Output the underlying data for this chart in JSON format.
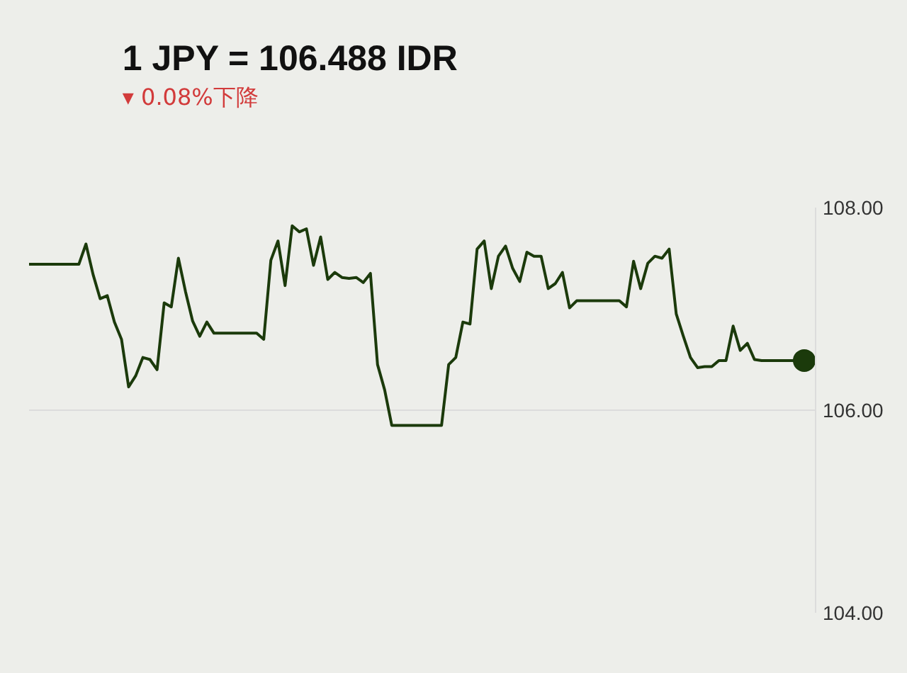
{
  "chart_data": {
    "type": "line",
    "title": "1 JPY = 106.488 IDR",
    "subtitle": "▾ 0.08%下降",
    "categories": [
      null,
      null,
      null,
      null,
      null,
      null,
      null,
      null,
      null,
      null,
      null,
      null,
      null,
      null,
      null,
      null,
      null,
      null,
      null,
      null,
      null,
      null,
      null,
      null,
      null,
      null,
      null,
      null,
      null,
      null,
      null,
      null,
      null,
      null,
      null,
      null,
      null,
      null,
      null,
      null,
      null,
      null,
      null,
      null,
      null,
      null,
      null,
      null,
      null,
      null,
      null,
      null,
      null,
      null,
      null,
      null,
      null,
      null,
      null,
      null,
      null,
      null,
      null,
      null,
      null,
      null,
      null,
      null,
      null,
      null,
      null,
      null,
      null,
      null,
      null,
      null,
      null,
      null,
      null,
      null,
      null,
      null,
      null,
      null,
      null,
      null,
      null,
      null,
      null,
      null,
      null,
      null,
      null,
      null,
      null,
      null,
      null,
      null,
      null,
      null,
      null,
      null,
      null,
      null,
      null,
      null,
      null,
      null,
      null,
      null
    ],
    "series": [
      {
        "color": "#1b3a0b",
        "values": [
          107.44,
          107.44,
          107.44,
          107.44,
          107.44,
          107.44,
          107.44,
          107.44,
          107.64,
          107.34,
          107.1,
          107.13,
          106.87,
          106.7,
          106.23,
          106.34,
          106.52,
          106.5,
          106.4,
          107.06,
          107.02,
          107.5,
          107.17,
          106.88,
          106.73,
          106.87,
          106.76,
          106.76,
          106.76,
          106.76,
          106.76,
          106.76,
          106.76,
          106.7,
          107.48,
          107.67,
          107.23,
          107.82,
          107.76,
          107.79,
          107.43,
          107.71,
          107.29,
          107.36,
          107.31,
          107.3,
          107.31,
          107.26,
          107.35,
          106.45,
          106.2,
          105.85,
          105.85,
          105.85,
          105.85,
          105.85,
          105.85,
          105.85,
          105.85,
          106.45,
          106.52,
          106.87,
          106.85,
          107.59,
          107.67,
          107.2,
          107.52,
          107.62,
          107.4,
          107.27,
          107.56,
          107.52,
          107.52,
          107.2,
          107.25,
          107.36,
          107.01,
          107.08,
          107.08,
          107.08,
          107.08,
          107.08,
          107.08,
          107.08,
          107.02,
          107.47,
          107.2,
          107.45,
          107.52,
          107.5,
          107.59,
          106.95,
          106.73,
          106.52,
          106.42,
          106.43,
          106.43,
          106.49,
          106.49,
          106.83,
          106.59,
          106.66,
          106.5,
          106.49,
          106.49,
          106.49,
          106.49,
          106.49,
          106.49,
          106.49
        ]
      },
      {
        "type": "scatter",
        "color": "#1b3a0b",
        "marker": "circle",
        "values": [
          null,
          null,
          null,
          null,
          null,
          null,
          null,
          null,
          null,
          null,
          null,
          null,
          null,
          null,
          null,
          null,
          null,
          null,
          null,
          null,
          null,
          null,
          null,
          null,
          null,
          null,
          null,
          null,
          null,
          null,
          null,
          null,
          null,
          null,
          null,
          null,
          null,
          null,
          null,
          null,
          null,
          null,
          null,
          null,
          null,
          null,
          null,
          null,
          null,
          null,
          null,
          null,
          null,
          null,
          null,
          null,
          null,
          null,
          null,
          null,
          null,
          null,
          null,
          null,
          null,
          null,
          null,
          null,
          null,
          null,
          null,
          null,
          null,
          null,
          null,
          null,
          null,
          null,
          null,
          null,
          null,
          null,
          null,
          null,
          null,
          null,
          null,
          null,
          null,
          null,
          null,
          null,
          null,
          null,
          null,
          null,
          null,
          null,
          null,
          null,
          null,
          null,
          null,
          null,
          null,
          null,
          null,
          null,
          null,
          106.49
        ]
      }
    ],
    "ylim": [
      104,
      108
    ],
    "yticks": [
      {
        "value": 104,
        "label": "104.00"
      },
      {
        "value": 106,
        "label": "106.00"
      },
      {
        "value": 108,
        "label": "108.00"
      }
    ],
    "grid": "y",
    "tick_labels": "y"
  }
}
